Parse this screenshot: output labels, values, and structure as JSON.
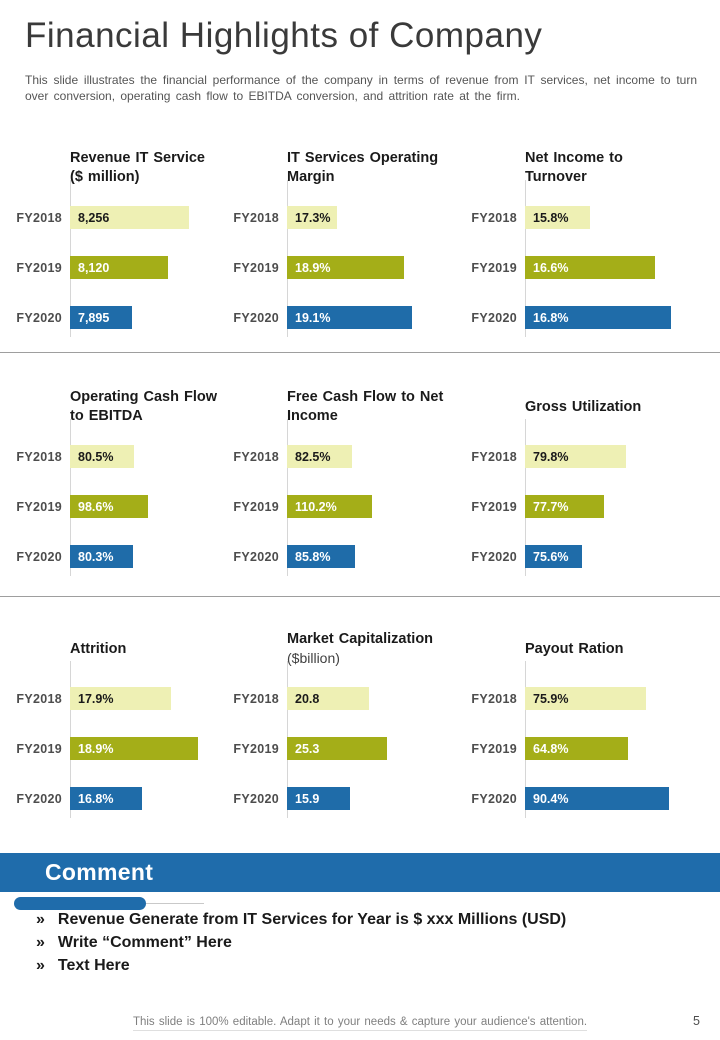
{
  "page": {
    "title": "Financial Highlights of Company",
    "subtitle": "This slide illustrates the financial performance of the company in terms of revenue from IT services, net income to turn over conversion, operating cash flow to EBITDA conversion, and attrition rate at the firm.",
    "footer": "This slide is 100% editable. Adapt it to your needs & capture your audience's attention.",
    "page_number": "5"
  },
  "comment": {
    "heading": "Comment",
    "bullet_marker": "»",
    "bullets": [
      "Revenue Generate from IT Services for Year is $ xxx Millions (USD)",
      "Write “Comment” Here",
      "Text Here"
    ]
  },
  "colors": {
    "bar_fy2018": "#EEF0B4",
    "bar_fy2019": "#A4AE18",
    "bar_fy2020": "#1F6CA9",
    "banner_blue": "#1F6CAB",
    "value_on_pale": "#1A1A1A",
    "value_on_dark": "#FFFFFF"
  },
  "chart_data": [
    {
      "type": "bar",
      "title": "Revenue IT Service\n($ million)",
      "categories": [
        "FY2018",
        "FY2019",
        "FY2020"
      ],
      "values": [
        8256,
        8120,
        7895
      ],
      "value_labels": [
        "8,256",
        "8,120",
        "7,895"
      ],
      "xlim": [
        7500,
        8450
      ],
      "grid": false,
      "legend": "none"
    },
    {
      "type": "bar",
      "title": "IT Services Operating\nMargin",
      "categories": [
        "FY2018",
        "FY2019",
        "FY2020"
      ],
      "values": [
        17.3,
        18.9,
        19.1
      ],
      "value_labels": [
        "17.3%",
        "18.9%",
        "19.1%"
      ],
      "xlim": [
        16.1,
        19.7
      ],
      "grid": false,
      "legend": "none"
    },
    {
      "type": "bar",
      "title": "Net Income to Turnover",
      "categories": [
        "FY2018",
        "FY2019",
        "FY2020"
      ],
      "values": [
        15.8,
        16.6,
        16.8
      ],
      "value_labels": [
        "15.8%",
        "16.6%",
        "16.8%"
      ],
      "xlim": [
        15.0,
        16.85
      ],
      "grid": false,
      "legend": "none"
    },
    {
      "type": "bar",
      "title": "Operating Cash Flow\nto EBITDA",
      "categories": [
        "FY2018",
        "FY2019",
        "FY2020"
      ],
      "values": [
        80.5,
        98.6,
        80.3
      ],
      "value_labels": [
        "80.5%",
        "98.6%",
        "80.3%"
      ],
      "xlim": [
        0,
        190
      ],
      "grid": false,
      "legend": "none"
    },
    {
      "type": "bar",
      "title": "Free Cash Flow to Net\nIncome",
      "categories": [
        "FY2018",
        "FY2019",
        "FY2020"
      ],
      "values": [
        82.5,
        110.2,
        85.8
      ],
      "value_labels": [
        "82.5%",
        "110.2%",
        "85.8%"
      ],
      "xlim": [
        -8,
        200
      ],
      "grid": false,
      "legend": "none"
    },
    {
      "type": "bar",
      "title": "Gross Utilization",
      "categories": [
        "FY2018",
        "FY2019",
        "FY2020"
      ],
      "values": [
        79.8,
        77.7,
        75.6
      ],
      "value_labels": [
        "79.8%",
        "77.7%",
        "75.6%"
      ],
      "xlim": [
        70.2,
        84.5
      ],
      "grid": false,
      "legend": "none"
    },
    {
      "type": "bar",
      "title": "Attrition",
      "categories": [
        "FY2018",
        "FY2019",
        "FY2020"
      ],
      "values": [
        17.9,
        18.9,
        16.8
      ],
      "value_labels": [
        "17.9%",
        "18.9%",
        "16.8%"
      ],
      "xlim": [
        14.1,
        19.72
      ],
      "grid": false,
      "legend": "none"
    },
    {
      "type": "bar",
      "title": "Market Capitalization",
      "subtitle": "($billion)",
      "categories": [
        "FY2018",
        "FY2019",
        "FY2020"
      ],
      "values": [
        20.8,
        25.3,
        15.9
      ],
      "value_labels": [
        "20.8",
        "25.3",
        "15.9"
      ],
      "xlim": [
        0,
        38
      ],
      "grid": false,
      "legend": "none"
    },
    {
      "type": "bar",
      "title": "Payout Ration",
      "categories": [
        "FY2018",
        "FY2019",
        "FY2020"
      ],
      "values": [
        75.9,
        64.8,
        90.4
      ],
      "value_labels": [
        "75.9%",
        "64.8%",
        "90.4%"
      ],
      "xlim": [
        0,
        94
      ],
      "grid": false,
      "legend": "none"
    }
  ],
  "layout": {
    "chart_lefts": [
      0,
      217,
      455
    ],
    "chart_tops": [
      140,
      379,
      621
    ]
  }
}
